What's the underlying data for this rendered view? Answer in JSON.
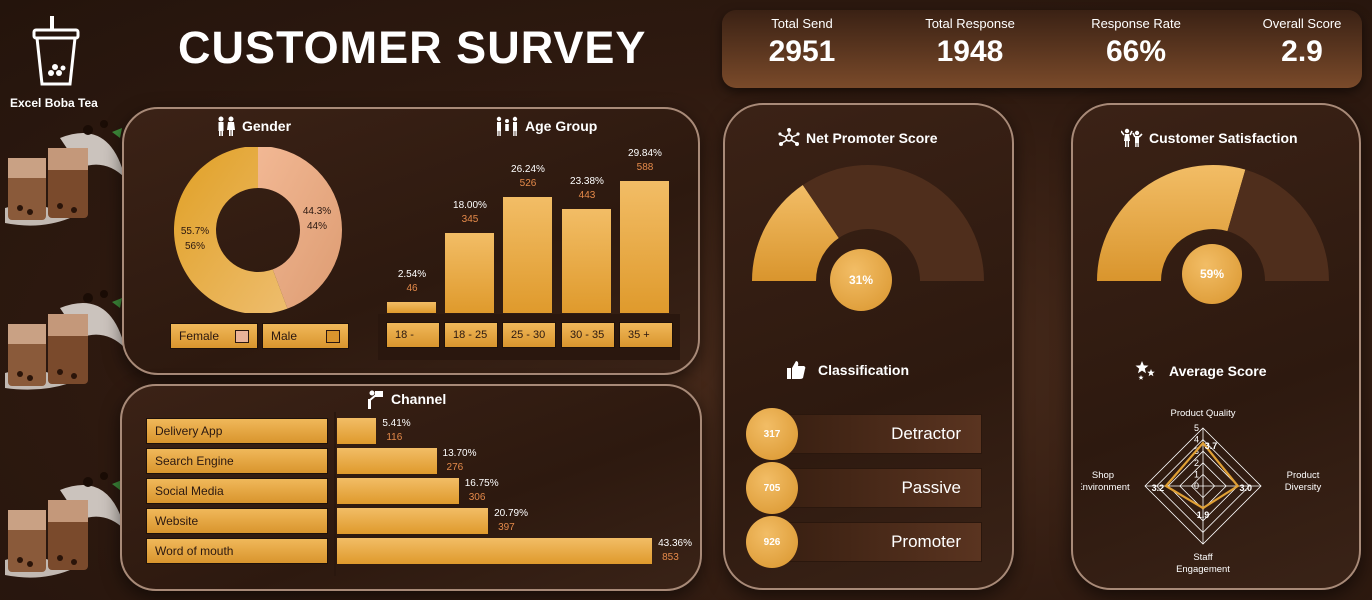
{
  "brand": {
    "name": "Excel Boba Tea"
  },
  "title": "CUSTOMER SURVEY",
  "kpis": [
    {
      "label": "Total Send",
      "value": "2951"
    },
    {
      "label": "Total Response",
      "value": "1948"
    },
    {
      "label": "Response Rate",
      "value": "66%"
    },
    {
      "label": "Overall Score",
      "value": "2.9"
    }
  ],
  "colors": {
    "gold": "#e0a035",
    "peach": "#eaa882",
    "brown": "#4f2e1c",
    "orange_text": "#e58a4a"
  },
  "chart_data": [
    {
      "id": "gender",
      "type": "pie",
      "title": "Gender",
      "categories": [
        "Female",
        "Male"
      ],
      "values": [
        55.7,
        44.3
      ],
      "value_labels": [
        "55.7%",
        "44.3%"
      ],
      "secondary_labels": [
        "56%",
        "44%"
      ]
    },
    {
      "id": "age_group",
      "type": "bar",
      "title": "Age Group",
      "categories": [
        "18 -",
        "18 - 25",
        "25 - 30",
        "30 - 35",
        "35 +"
      ],
      "values": [
        2.54,
        18.0,
        26.24,
        23.38,
        29.84
      ],
      "value_labels": [
        "2.54%",
        "18.00%",
        "26.24%",
        "23.38%",
        "29.84%"
      ],
      "counts": [
        "46",
        "345",
        "526",
        "443",
        "588"
      ]
    },
    {
      "id": "channel",
      "type": "bar",
      "title": "Channel",
      "categories": [
        "Delivery App",
        "Search Engine",
        "Social Media",
        "Website",
        "Word of mouth"
      ],
      "values": [
        5.41,
        13.7,
        16.75,
        20.79,
        43.36
      ],
      "value_labels": [
        "5.41%",
        "13.70%",
        "16.75%",
        "20.79%",
        "43.36%"
      ],
      "counts": [
        "116",
        "276",
        "306",
        "397",
        "853"
      ]
    },
    {
      "id": "nps",
      "type": "pie",
      "title": "Net Promoter Score",
      "values": [
        31
      ],
      "value_label": "31%"
    },
    {
      "id": "csat",
      "type": "pie",
      "title": "Customer Satisfaction",
      "values": [
        59
      ],
      "value_label": "59%"
    },
    {
      "id": "classification",
      "type": "table",
      "title": "Classification",
      "categories": [
        "Detractor",
        "Passive",
        "Promoter"
      ],
      "values": [
        317,
        705,
        926
      ]
    },
    {
      "id": "average_score",
      "type": "radar",
      "title": "Average Score",
      "categories": [
        "Product Quality",
        "Product Diversity",
        "Staff Engagement",
        "Shop Environment"
      ],
      "axis_labels": [
        [
          "Product Quality"
        ],
        [
          "Product",
          "Diversity"
        ],
        [
          "Staff",
          "Engagement"
        ],
        [
          "Shop",
          "Environment"
        ]
      ],
      "values": [
        3.7,
        3.0,
        1.9,
        3.2
      ],
      "value_labels": [
        "3.7",
        "3.0",
        "1.9",
        "3.2"
      ],
      "ticks": [
        "0",
        "1",
        "2",
        "3",
        "4",
        "5"
      ],
      "ylim": [
        0,
        5
      ]
    }
  ]
}
